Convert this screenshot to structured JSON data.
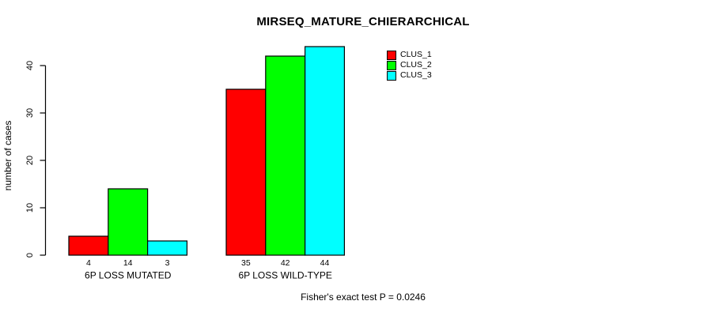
{
  "chart": {
    "background": "#ffffff",
    "axis_color": "#000000",
    "text_color": "#000000"
  },
  "chart_data": {
    "type": "bar",
    "title": "MIRSEQ_MATURE_CHIERARCHICAL",
    "xlabel": "",
    "ylabel": "number of cases",
    "categories": [
      "6P LOSS MUTATED",
      "6P LOSS WILD-TYPE"
    ],
    "series": [
      {
        "name": "CLUS_1",
        "color": "#ff0000",
        "values": [
          4,
          35
        ]
      },
      {
        "name": "CLUS_2",
        "color": "#00ff00",
        "values": [
          14,
          42
        ]
      },
      {
        "name": "CLUS_3",
        "color": "#00ffff",
        "values": [
          3,
          44
        ]
      }
    ],
    "bar_value_labels": [
      [
        4,
        14,
        3
      ],
      [
        35,
        42,
        44
      ]
    ],
    "y_ticks": [
      0,
      10,
      20,
      30,
      40
    ],
    "ylim": [
      0,
      44
    ],
    "grid": false,
    "legend_position": "top-right",
    "legend_entries": [
      "CLUS_1",
      "CLUS_2",
      "CLUS_3"
    ],
    "annotation": "Fisher's exact test P = 0.0246"
  }
}
